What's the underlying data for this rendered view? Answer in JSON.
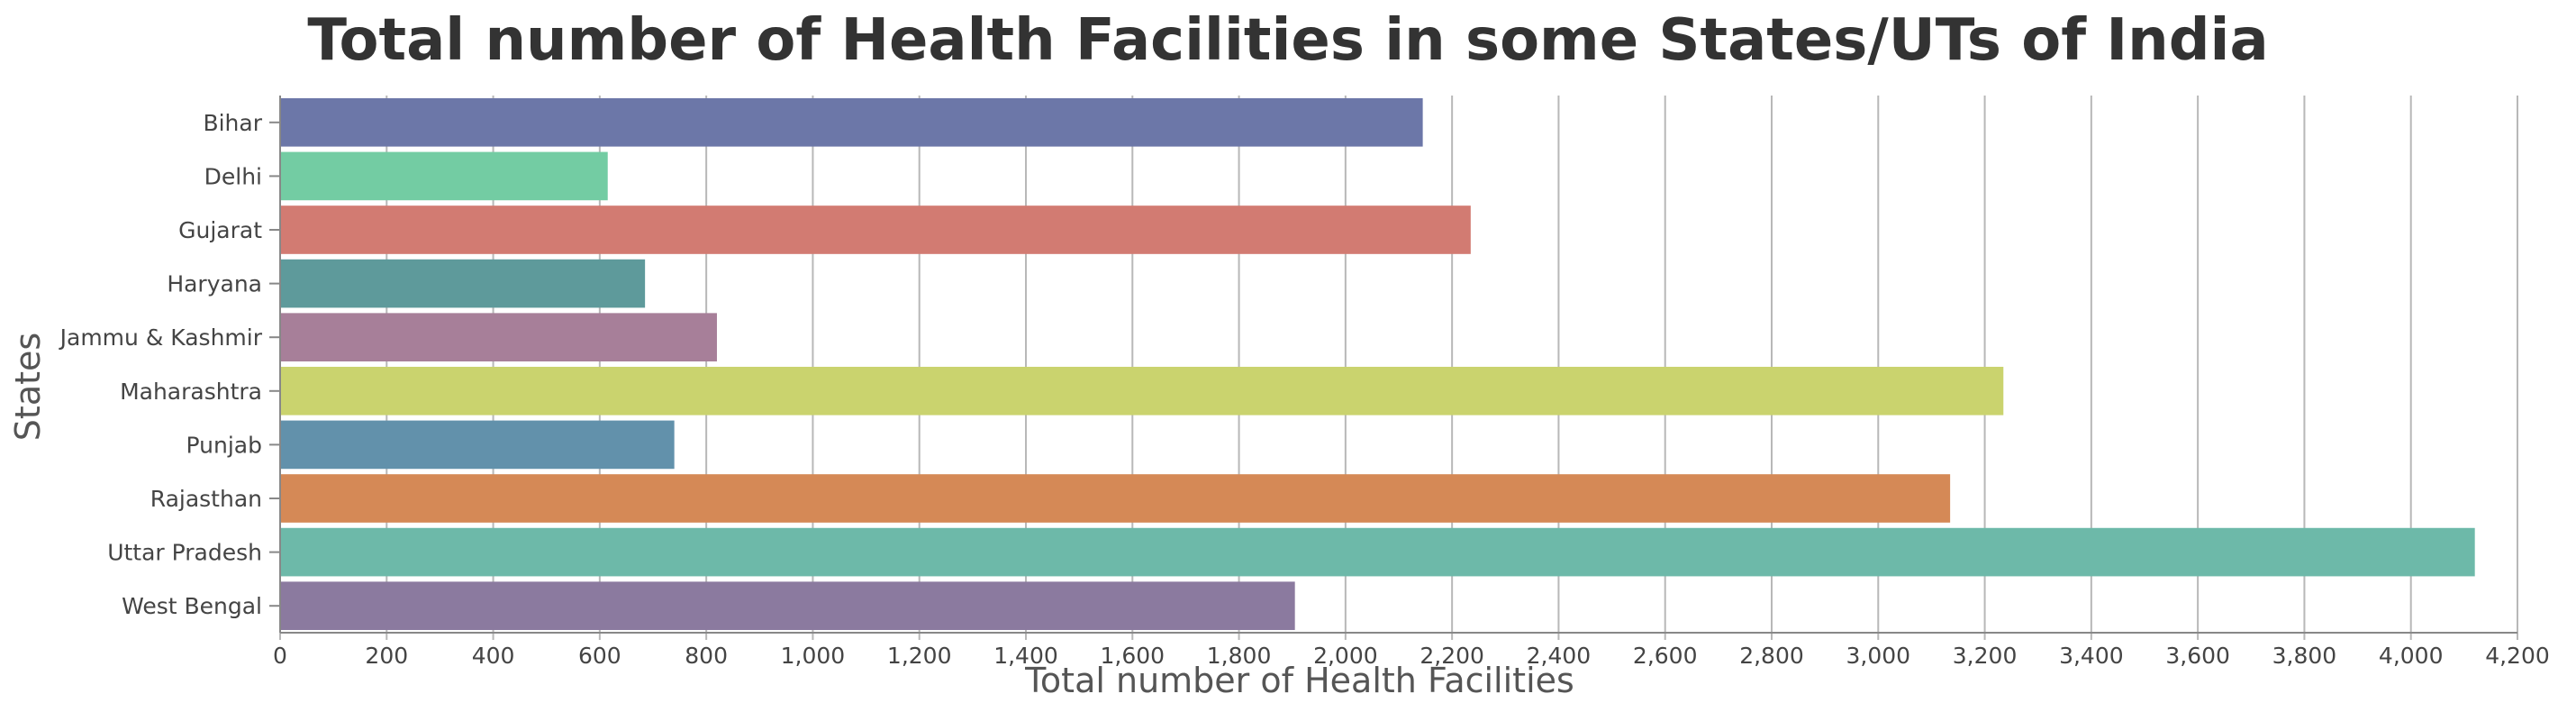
{
  "chart_data": {
    "type": "bar",
    "orientation": "horizontal",
    "title": "Total number of Health Facilities in some States/UTs of India",
    "xlabel": "Total number of Health Facilities",
    "ylabel": "States",
    "categories": [
      "Bihar",
      "Delhi",
      "Gujarat",
      "Haryana",
      "Jammu & Kashmir",
      "Maharashtra",
      "Punjab",
      "Rajasthan",
      "Uttar Pradesh",
      "West Bengal"
    ],
    "values": [
      2145,
      615,
      2235,
      685,
      820,
      3235,
      740,
      3135,
      4120,
      1905
    ],
    "colors": [
      "#6c77a8",
      "#73cca3",
      "#d27b72",
      "#5e9a9b",
      "#a77f99",
      "#cad36e",
      "#6291ab",
      "#d58956",
      "#6db9a9",
      "#8b7a9f"
    ],
    "xlim": [
      0,
      4200
    ],
    "xticks": [
      0,
      200,
      400,
      600,
      800,
      1000,
      1200,
      1400,
      1600,
      1800,
      2000,
      2200,
      2400,
      2600,
      2800,
      3000,
      3200,
      3400,
      3600,
      3800,
      4000,
      4200
    ],
    "xtick_labels": [
      "0",
      "200",
      "400",
      "600",
      "800",
      "1,000",
      "1,200",
      "1,400",
      "1,600",
      "1,800",
      "2,000",
      "2,200",
      "2,400",
      "2,600",
      "2,800",
      "3,000",
      "3,200",
      "3,400",
      "3,600",
      "3,800",
      "4,000",
      "4,200"
    ],
    "grid": "vertical",
    "legend": "none"
  }
}
